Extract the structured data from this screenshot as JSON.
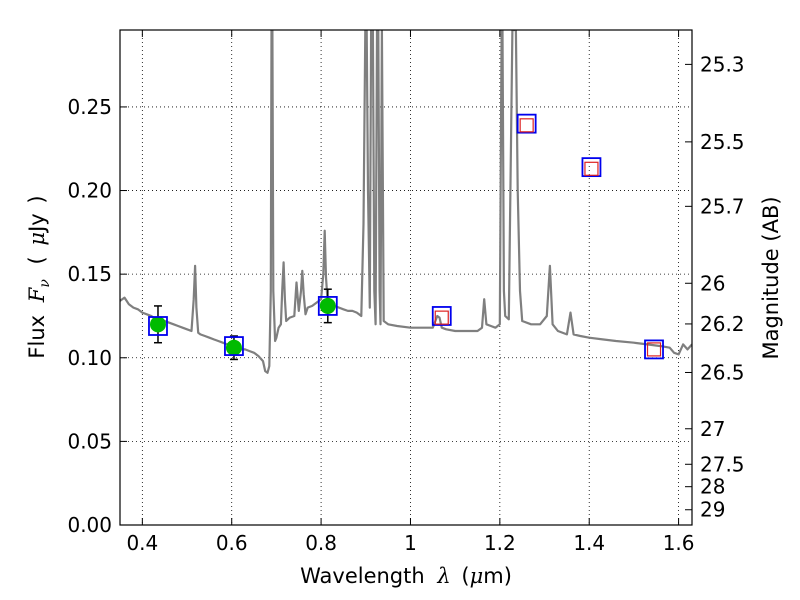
{
  "chart_data": {
    "type": "line",
    "title": "",
    "xlabel": {
      "prefix": "Wavelength",
      "symbol": "λ",
      "unit_open": "(",
      "unit_mu": "μ",
      "unit_rest": "m)"
    },
    "ylabel": {
      "prefix": "Flux",
      "symbol": "F",
      "subscript": "ν",
      "unit_open": "(",
      "unit_mu": "μ",
      "unit_rest": "Jy",
      "unit_close": ")"
    },
    "y2label": "Magnitude (AB)",
    "xlim": [
      0.35,
      1.63
    ],
    "ylim": [
      0.0,
      0.296
    ],
    "grid": true,
    "x_ticks": [
      {
        "value": 0.4,
        "label": "0.4"
      },
      {
        "value": 0.6,
        "label": "0.6"
      },
      {
        "value": 0.8,
        "label": "0.8"
      },
      {
        "value": 1.0,
        "label": "1"
      },
      {
        "value": 1.2,
        "label": "1.2"
      },
      {
        "value": 1.4,
        "label": "1.4"
      },
      {
        "value": 1.6,
        "label": "1.6"
      }
    ],
    "y_ticks": [
      {
        "value": 0.0,
        "label": "0.00"
      },
      {
        "value": 0.05,
        "label": "0.05"
      },
      {
        "value": 0.1,
        "label": "0.10"
      },
      {
        "value": 0.15,
        "label": "0.15"
      },
      {
        "value": 0.2,
        "label": "0.20"
      },
      {
        "value": 0.25,
        "label": "0.25"
      }
    ],
    "y2_ticks": [
      {
        "value": 25.3,
        "label": "25.3"
      },
      {
        "value": 25.5,
        "label": "25.5"
      },
      {
        "value": 25.7,
        "label": "25.7"
      },
      {
        "value": 26.0,
        "label": "26"
      },
      {
        "value": 26.2,
        "label": "26.2"
      },
      {
        "value": 26.5,
        "label": "26.5"
      },
      {
        "value": 27.0,
        "label": "27"
      },
      {
        "value": 27.5,
        "label": "27.5"
      },
      {
        "value": 28.0,
        "label": "28"
      },
      {
        "value": 29.0,
        "label": "29"
      }
    ],
    "series": [
      {
        "type": "line",
        "color": "#7f7f7f",
        "x": [
          0.35,
          0.36,
          0.37,
          0.38,
          0.39,
          0.4,
          0.41,
          0.42,
          0.43,
          0.44,
          0.45,
          0.46,
          0.47,
          0.48,
          0.49,
          0.5,
          0.51,
          0.515,
          0.518,
          0.521,
          0.525,
          0.53,
          0.54,
          0.55,
          0.56,
          0.57,
          0.58,
          0.59,
          0.6,
          0.61,
          0.62,
          0.63,
          0.64,
          0.65,
          0.66,
          0.67,
          0.675,
          0.68,
          0.684,
          0.6875,
          0.689,
          0.691,
          0.693,
          0.697,
          0.7,
          0.705,
          0.71,
          0.713,
          0.716,
          0.719,
          0.722,
          0.73,
          0.74,
          0.745,
          0.75,
          0.755,
          0.758,
          0.761,
          0.765,
          0.77,
          0.78,
          0.79,
          0.8,
          0.805,
          0.808,
          0.811,
          0.815,
          0.82,
          0.83,
          0.84,
          0.85,
          0.86,
          0.87,
          0.88,
          0.89,
          0.895,
          0.899,
          0.902,
          0.905,
          0.909,
          0.912,
          0.916,
          0.919,
          0.922,
          0.925,
          0.928,
          0.931,
          0.933,
          0.936,
          0.94,
          0.95,
          0.97,
          1.0,
          1.03,
          1.05,
          1.06,
          1.065,
          1.07,
          1.08,
          1.1,
          1.13,
          1.15,
          1.16,
          1.165,
          1.17,
          1.18,
          1.19,
          1.2,
          1.204,
          1.206,
          1.209,
          1.212,
          1.22,
          1.228,
          1.232,
          1.236,
          1.24,
          1.245,
          1.25,
          1.27,
          1.29,
          1.305,
          1.312,
          1.318,
          1.33,
          1.35,
          1.358,
          1.365,
          1.38,
          1.4,
          1.43,
          1.46,
          1.5,
          1.53,
          1.56,
          1.58,
          1.59,
          1.6,
          1.61,
          1.62,
          1.63
        ],
        "y": [
          0.134,
          0.136,
          0.132,
          0.13,
          0.129,
          0.127,
          0.126,
          0.125,
          0.123,
          0.122,
          0.122,
          0.121,
          0.12,
          0.119,
          0.118,
          0.117,
          0.116,
          0.135,
          0.155,
          0.13,
          0.115,
          0.114,
          0.113,
          0.112,
          0.111,
          0.11,
          0.109,
          0.108,
          0.107,
          0.106,
          0.105,
          0.105,
          0.104,
          0.103,
          0.101,
          0.098,
          0.092,
          0.091,
          0.095,
          0.14,
          0.296,
          0.296,
          0.14,
          0.11,
          0.112,
          0.118,
          0.12,
          0.14,
          0.157,
          0.135,
          0.122,
          0.124,
          0.125,
          0.145,
          0.128,
          0.14,
          0.152,
          0.138,
          0.126,
          0.13,
          0.131,
          0.133,
          0.135,
          0.15,
          0.176,
          0.148,
          0.132,
          0.132,
          0.131,
          0.13,
          0.129,
          0.128,
          0.128,
          0.127,
          0.125,
          0.18,
          0.296,
          0.296,
          0.2,
          0.13,
          0.296,
          0.296,
          0.14,
          0.12,
          0.296,
          0.296,
          0.14,
          0.12,
          0.296,
          0.122,
          0.12,
          0.119,
          0.118,
          0.118,
          0.118,
          0.125,
          0.124,
          0.118,
          0.117,
          0.116,
          0.116,
          0.116,
          0.118,
          0.135,
          0.12,
          0.119,
          0.118,
          0.12,
          0.296,
          0.296,
          0.14,
          0.125,
          0.123,
          0.296,
          0.296,
          0.296,
          0.2,
          0.14,
          0.122,
          0.12,
          0.12,
          0.125,
          0.155,
          0.12,
          0.116,
          0.114,
          0.127,
          0.114,
          0.113,
          0.112,
          0.111,
          0.11,
          0.109,
          0.108,
          0.107,
          0.106,
          0.103,
          0.102,
          0.108,
          0.105,
          0.108
        ]
      },
      {
        "type": "scatter",
        "marker": "circle",
        "color": "#00bb00",
        "x": [
          0.435,
          0.605,
          0.815
        ],
        "y": [
          0.12,
          0.106,
          0.131
        ],
        "yerr": [
          0.011,
          0.007,
          0.01
        ]
      },
      {
        "type": "scatter",
        "marker": "square",
        "color": "#0000ee",
        "x": [
          0.435,
          0.605,
          0.815,
          1.07,
          1.26,
          1.405,
          1.545
        ],
        "y": [
          0.119,
          0.107,
          0.131,
          0.125,
          0.24,
          0.214,
          0.105
        ]
      },
      {
        "type": "scatter",
        "marker": "square",
        "color": "#dd2222",
        "x": [
          1.07,
          1.26,
          1.405,
          1.545
        ],
        "y": [
          0.124,
          0.239,
          0.213,
          0.105
        ]
      }
    ]
  }
}
